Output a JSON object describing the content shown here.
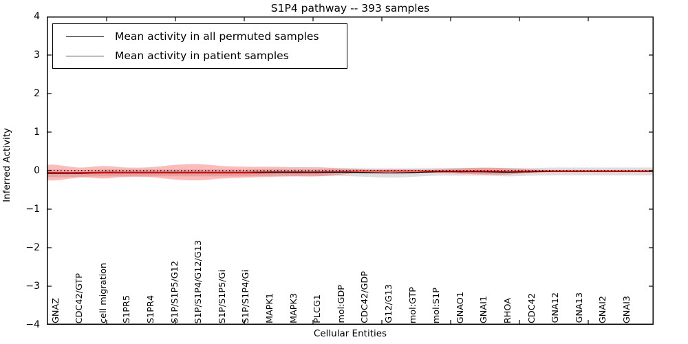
{
  "title": "S1P4 pathway -- 393 samples",
  "legend": {
    "items": [
      {
        "label": "Mean activity in all permuted samples",
        "color": "#000000"
      },
      {
        "label": "Mean activity in patient samples",
        "color": "#ff0000"
      }
    ]
  },
  "axes": {
    "xlabel": "Cellular Entities",
    "ylabel": "Inferred Activity",
    "ytick_labels": [
      "4",
      "3",
      "2",
      "1",
      "0",
      "−1",
      "−2",
      "−3",
      "−4"
    ]
  },
  "chart_data": {
    "type": "line",
    "title": "S1P4 pathway -- 393 samples",
    "xlabel": "Cellular Entities",
    "ylabel": "Inferred Activity",
    "ylim": [
      -4,
      4
    ],
    "yticks": [
      4,
      3,
      2,
      1,
      0,
      -1,
      -2,
      -3,
      -4
    ],
    "grid": false,
    "legend_position": "upper left",
    "categories": [
      "GNAZ",
      "CDC42/GTP",
      "cell migration",
      "S1PR5",
      "S1PR4",
      "S1P/S1P5/G12",
      "S1P/S1P4/G12/G13",
      "S1P/S1P5/Gi",
      "S1P/S1P4/Gi",
      "MAPK1",
      "MAPK3",
      "PLCG1",
      "mol:GDP",
      "CDC42/GDP",
      "G12/G13",
      "mol:GTP",
      "mol:S1P",
      "GNAO1",
      "GNAI1",
      "RHOA",
      "CDC42",
      "GNA12",
      "GNA13",
      "GNAI2",
      "GNAI3"
    ],
    "series": [
      {
        "name": "Mean activity in all permuted samples",
        "color": "#000000",
        "band_fill": "rgba(0,0,0,0.13)",
        "values": [
          -0.07,
          -0.07,
          -0.06,
          -0.06,
          -0.06,
          -0.06,
          -0.06,
          -0.06,
          -0.06,
          -0.05,
          -0.05,
          -0.05,
          -0.04,
          -0.05,
          -0.06,
          -0.05,
          -0.03,
          -0.03,
          -0.03,
          -0.04,
          -0.03,
          -0.02,
          -0.02,
          -0.02,
          -0.02
        ],
        "std": [
          0.1,
          0.09,
          0.09,
          0.09,
          0.09,
          0.09,
          0.09,
          0.09,
          0.09,
          0.09,
          0.09,
          0.09,
          0.1,
          0.11,
          0.12,
          0.11,
          0.1,
          0.1,
          0.1,
          0.11,
          0.1,
          0.1,
          0.1,
          0.1,
          0.1
        ]
      },
      {
        "name": "Mean activity in patient samples",
        "color": "#ff0000",
        "band_fill": "rgba(255,0,0,0.27)",
        "values": [
          -0.05,
          -0.05,
          -0.04,
          -0.04,
          -0.04,
          -0.04,
          -0.04,
          -0.04,
          -0.04,
          -0.03,
          -0.03,
          -0.03,
          -0.02,
          -0.01,
          -0.01,
          -0.01,
          -0.01,
          -0.01,
          -0.01,
          -0.02,
          -0.01,
          -0.01,
          -0.01,
          -0.01,
          -0.01
        ],
        "std": [
          0.2,
          0.13,
          0.16,
          0.12,
          0.13,
          0.19,
          0.21,
          0.16,
          0.14,
          0.13,
          0.12,
          0.12,
          0.08,
          0.04,
          0.04,
          0.04,
          0.04,
          0.07,
          0.09,
          0.08,
          0.04,
          0.03,
          0.03,
          0.03,
          0.03
        ]
      }
    ],
    "zero_line": {
      "value": 0,
      "color": "#000000",
      "style": "dotted"
    }
  }
}
